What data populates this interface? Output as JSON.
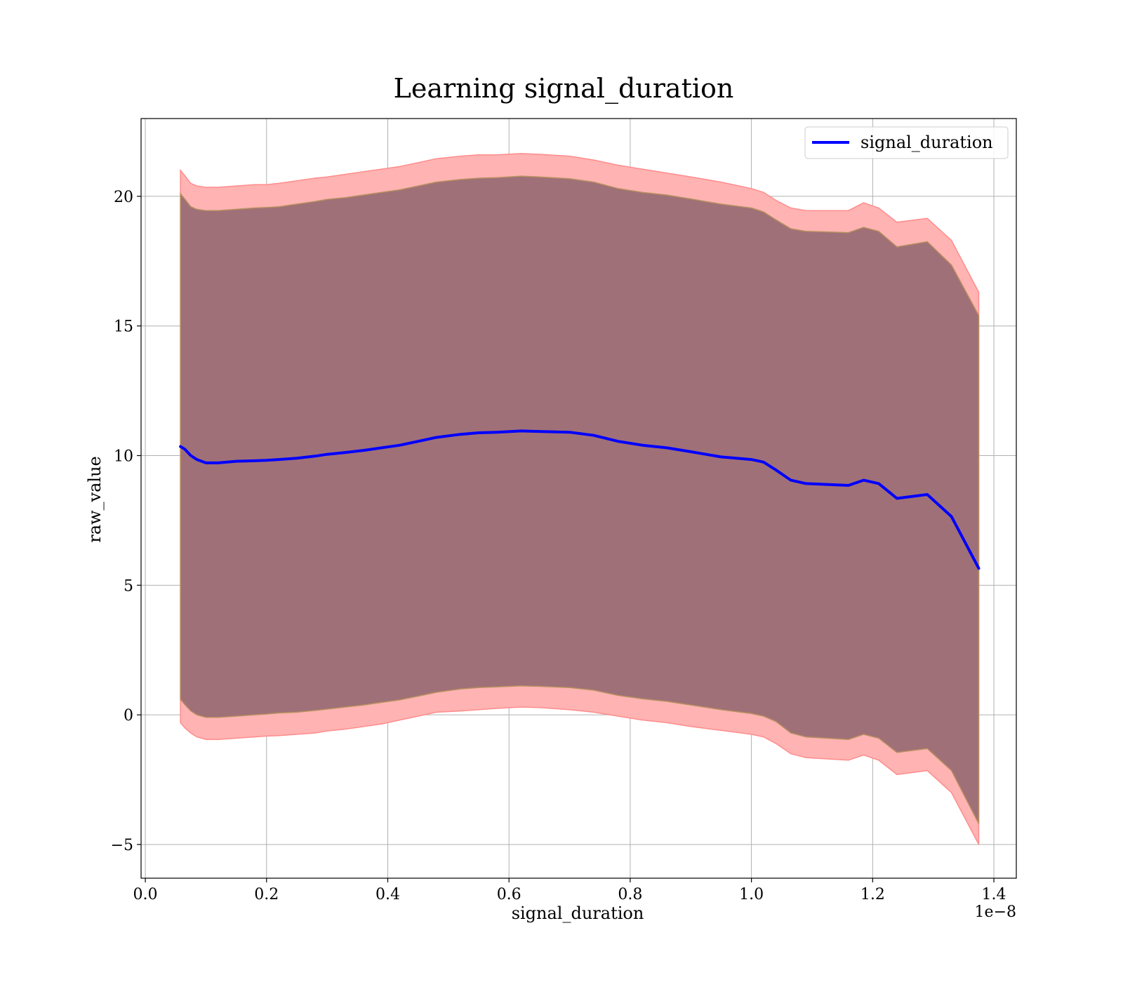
{
  "chart_data": {
    "type": "line",
    "title": "Learning signal_duration",
    "xlabel": "signal_duration",
    "ylabel": "raw_value",
    "x_offset_label": "1e−8",
    "x_ticks": [
      0.0,
      0.2,
      0.4,
      0.6,
      0.8,
      1.0,
      1.2,
      1.4
    ],
    "x_tick_labels": [
      "0.0",
      "0.2",
      "0.4",
      "0.6",
      "0.8",
      "1.0",
      "1.2",
      "1.4"
    ],
    "y_ticks": [
      -5,
      0,
      5,
      10,
      15,
      20
    ],
    "y_tick_labels": [
      "−5",
      "0",
      "5",
      "10",
      "15",
      "20"
    ],
    "xlim": [
      -0.007,
      1.437
    ],
    "ylim": [
      -6.3,
      23.0
    ],
    "grid": true,
    "legend_position": "top-right",
    "colors": {
      "line": "#0000ff",
      "outer_band": "#ffb3b3",
      "outer_band_edge": "#ff8c8c",
      "inner_band": "#a07078",
      "inner_band_edge": "#b89060",
      "grid": "#b0b0b0"
    },
    "series": [
      {
        "name": "signal_duration",
        "x": [
          0.058,
          0.065,
          0.075,
          0.085,
          0.1,
          0.12,
          0.15,
          0.18,
          0.2,
          0.22,
          0.25,
          0.28,
          0.3,
          0.33,
          0.36,
          0.39,
          0.42,
          0.45,
          0.48,
          0.52,
          0.55,
          0.58,
          0.62,
          0.65,
          0.7,
          0.74,
          0.78,
          0.82,
          0.86,
          0.9,
          0.95,
          1.0,
          1.02,
          1.04,
          1.065,
          1.09,
          1.16,
          1.185,
          1.21,
          1.24,
          1.29,
          1.33,
          1.375
        ],
        "y": [
          10.35,
          10.25,
          10.0,
          9.85,
          9.72,
          9.72,
          9.78,
          9.8,
          9.82,
          9.85,
          9.9,
          9.98,
          10.05,
          10.12,
          10.2,
          10.3,
          10.4,
          10.55,
          10.7,
          10.82,
          10.88,
          10.9,
          10.95,
          10.93,
          10.9,
          10.78,
          10.55,
          10.4,
          10.3,
          10.15,
          9.95,
          9.85,
          9.75,
          9.45,
          9.05,
          8.92,
          8.85,
          9.05,
          8.92,
          8.35,
          8.5,
          7.65,
          5.65
        ]
      }
    ],
    "bands": [
      {
        "x": [
          0.058,
          0.065,
          0.075,
          0.085,
          0.1,
          0.12,
          0.15,
          0.18,
          0.2,
          0.22,
          0.25,
          0.28,
          0.3,
          0.33,
          0.36,
          0.39,
          0.42,
          0.45,
          0.48,
          0.52,
          0.55,
          0.58,
          0.62,
          0.65,
          0.7,
          0.74,
          0.78,
          0.82,
          0.86,
          0.9,
          0.95,
          1.0,
          1.02,
          1.04,
          1.065,
          1.09,
          1.16,
          1.185,
          1.21,
          1.24,
          1.29,
          1.33,
          1.375
        ],
        "upper": [
          21.0,
          20.8,
          20.5,
          20.4,
          20.35,
          20.35,
          20.4,
          20.45,
          20.45,
          20.5,
          20.6,
          20.7,
          20.75,
          20.85,
          20.95,
          21.05,
          21.15,
          21.3,
          21.45,
          21.55,
          21.6,
          21.6,
          21.65,
          21.62,
          21.55,
          21.4,
          21.2,
          21.05,
          20.9,
          20.75,
          20.55,
          20.3,
          20.15,
          19.85,
          19.55,
          19.45,
          19.45,
          19.75,
          19.55,
          19.0,
          19.15,
          18.3,
          16.3
        ],
        "lower": [
          -0.3,
          -0.5,
          -0.7,
          -0.85,
          -0.95,
          -0.95,
          -0.9,
          -0.85,
          -0.82,
          -0.8,
          -0.75,
          -0.7,
          -0.62,
          -0.55,
          -0.45,
          -0.35,
          -0.2,
          -0.05,
          0.1,
          0.15,
          0.2,
          0.25,
          0.3,
          0.28,
          0.2,
          0.1,
          -0.05,
          -0.2,
          -0.3,
          -0.45,
          -0.6,
          -0.75,
          -0.85,
          -1.1,
          -1.5,
          -1.65,
          -1.75,
          -1.55,
          -1.75,
          -2.3,
          -2.15,
          -3.0,
          -5.0
        ]
      },
      {
        "x": [
          0.058,
          0.065,
          0.075,
          0.085,
          0.1,
          0.12,
          0.15,
          0.18,
          0.2,
          0.22,
          0.25,
          0.28,
          0.3,
          0.33,
          0.36,
          0.39,
          0.42,
          0.45,
          0.48,
          0.52,
          0.55,
          0.58,
          0.62,
          0.65,
          0.7,
          0.74,
          0.78,
          0.82,
          0.86,
          0.9,
          0.95,
          1.0,
          1.02,
          1.04,
          1.065,
          1.09,
          1.16,
          1.185,
          1.21,
          1.24,
          1.29,
          1.33,
          1.375
        ],
        "upper": [
          20.1,
          19.9,
          19.6,
          19.5,
          19.45,
          19.45,
          19.5,
          19.55,
          19.57,
          19.6,
          19.7,
          19.8,
          19.88,
          19.95,
          20.05,
          20.15,
          20.25,
          20.4,
          20.55,
          20.65,
          20.7,
          20.72,
          20.78,
          20.75,
          20.68,
          20.55,
          20.3,
          20.15,
          20.05,
          19.9,
          19.7,
          19.55,
          19.4,
          19.1,
          18.75,
          18.65,
          18.6,
          18.8,
          18.65,
          18.05,
          18.25,
          17.35,
          15.4
        ],
        "lower": [
          0.6,
          0.4,
          0.15,
          0.0,
          -0.1,
          -0.1,
          -0.05,
          0.0,
          0.03,
          0.07,
          0.1,
          0.17,
          0.22,
          0.3,
          0.38,
          0.48,
          0.58,
          0.72,
          0.87,
          1.0,
          1.05,
          1.08,
          1.12,
          1.1,
          1.05,
          0.95,
          0.75,
          0.62,
          0.52,
          0.38,
          0.2,
          0.05,
          -0.05,
          -0.25,
          -0.7,
          -0.85,
          -0.95,
          -0.75,
          -0.9,
          -1.45,
          -1.3,
          -2.15,
          -4.2
        ]
      }
    ]
  }
}
